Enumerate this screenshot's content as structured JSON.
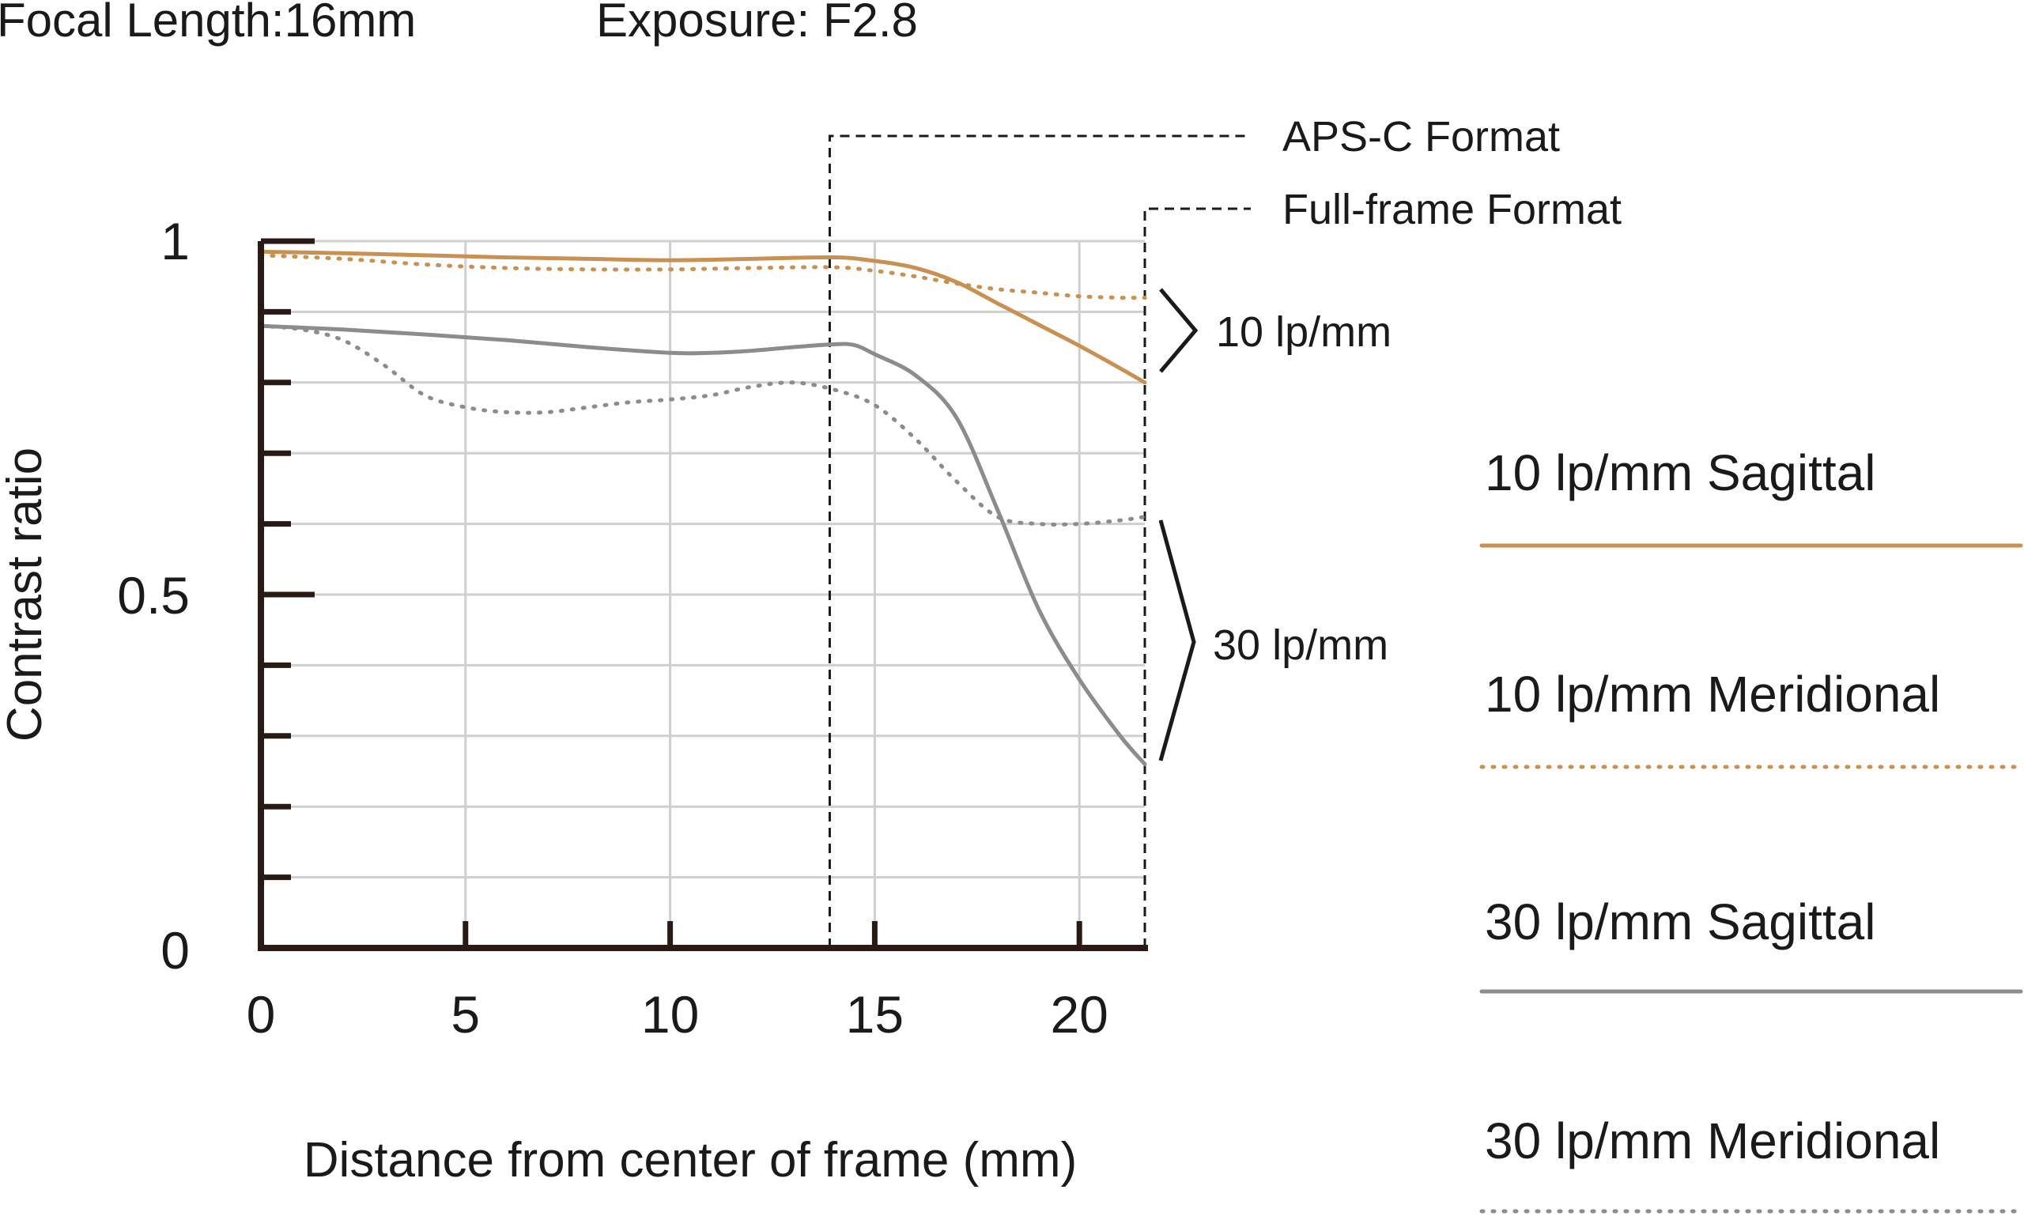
{
  "header": {
    "focal_length": "Focal Length:16mm",
    "exposure": "Exposure: F2.8"
  },
  "chart_data": {
    "type": "line",
    "title": "",
    "xlabel": "Distance from center of frame (mm)",
    "ylabel": "Contrast ratio",
    "xlim": [
      0,
      21.6
    ],
    "ylim": [
      0,
      1
    ],
    "x_ticks": [
      0,
      5,
      10,
      15,
      20
    ],
    "x_tick_labels": [
      "0",
      "5",
      "10",
      "15",
      "20"
    ],
    "y_ticks": [
      0,
      0.1,
      0.2,
      0.3,
      0.4,
      0.5,
      0.6,
      0.7,
      0.8,
      0.9,
      1.0
    ],
    "y_tick_labels": [
      "0",
      "0.5",
      "1"
    ],
    "y_labeled_ticks": [
      0,
      0.5,
      1
    ],
    "grid": true,
    "legend_position": "right",
    "format_markers": [
      {
        "name": "APS-C Format",
        "x": 13.9
      },
      {
        "name": "Full-frame Format",
        "x": 21.6
      }
    ],
    "group_labels": [
      "10 lp/mm",
      "30 lp/mm"
    ],
    "series": [
      {
        "name": "10 lp/mm Sagittal",
        "color": "#c89152",
        "style": "solid",
        "x": [
          0,
          2,
          4,
          6,
          8,
          10,
          12,
          14,
          15,
          16,
          17,
          18,
          19,
          20,
          21,
          21.6
        ],
        "y": [
          0.985,
          0.983,
          0.98,
          0.977,
          0.975,
          0.973,
          0.975,
          0.977,
          0.972,
          0.962,
          0.942,
          0.912,
          0.882,
          0.852,
          0.82,
          0.8
        ]
      },
      {
        "name": "10 lp/mm Meridional",
        "color": "#c89152",
        "style": "dotted",
        "x": [
          0,
          2,
          4,
          6,
          8,
          10,
          12,
          14,
          15,
          16,
          17,
          18,
          19,
          20,
          21,
          21.6
        ],
        "y": [
          0.98,
          0.975,
          0.967,
          0.962,
          0.96,
          0.96,
          0.962,
          0.963,
          0.958,
          0.95,
          0.94,
          0.932,
          0.927,
          0.922,
          0.92,
          0.92
        ]
      },
      {
        "name": "30 lp/mm Sagittal",
        "color": "#8c8c8c",
        "style": "solid",
        "x": [
          0,
          2,
          4,
          6,
          8,
          10,
          11,
          12,
          13,
          14,
          14.5,
          15,
          16,
          17,
          18,
          19,
          20,
          21,
          21.6
        ],
        "y": [
          0.88,
          0.875,
          0.868,
          0.86,
          0.85,
          0.842,
          0.842,
          0.845,
          0.85,
          0.854,
          0.853,
          0.84,
          0.81,
          0.75,
          0.62,
          0.48,
          0.38,
          0.3,
          0.26
        ]
      },
      {
        "name": "30 lp/mm Meridional",
        "color": "#8c8c8c",
        "style": "dotted",
        "x": [
          0,
          1,
          2,
          3,
          4,
          5,
          6,
          7,
          8,
          9,
          10,
          11,
          12,
          13,
          14,
          15,
          16,
          17,
          18,
          19,
          20,
          21,
          21.6
        ],
        "y": [
          0.88,
          0.875,
          0.86,
          0.825,
          0.782,
          0.765,
          0.758,
          0.758,
          0.765,
          0.772,
          0.776,
          0.782,
          0.794,
          0.8,
          0.79,
          0.768,
          0.72,
          0.66,
          0.61,
          0.6,
          0.6,
          0.605,
          0.61
        ]
      }
    ]
  }
}
